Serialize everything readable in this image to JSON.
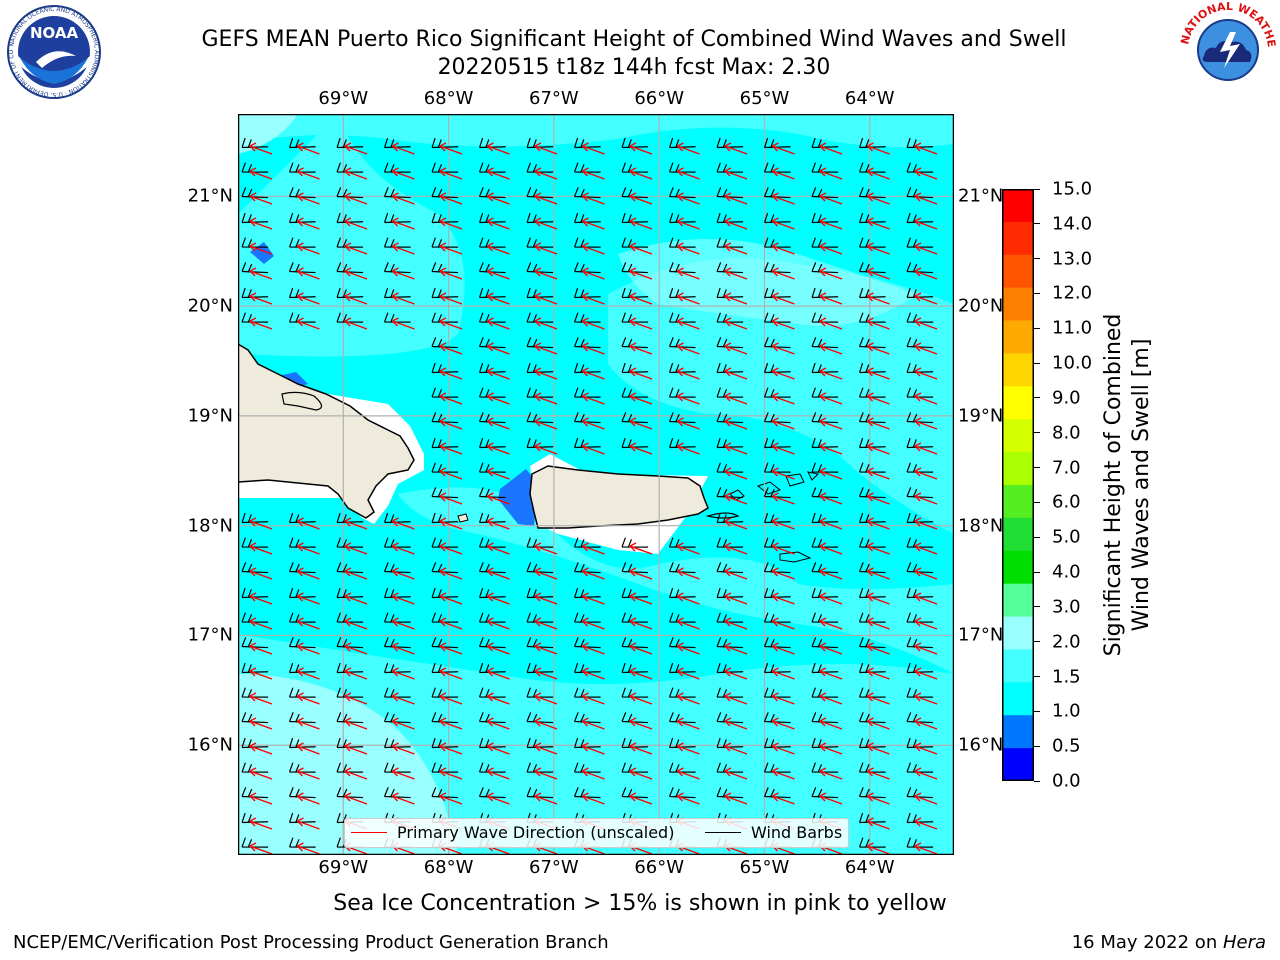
{
  "title": {
    "line1": "GEFS MEAN Puerto Rico Significant Height of Combined Wind Waves and Swell",
    "line2": "20220515 t18z 144h fcst   Max: 2.30"
  },
  "logos": {
    "left": "NOAA",
    "left_ring_text": "NATIONAL OCEANIC AND ATMOSPHERIC ADMINISTRATION · U.S. DEPARTMENT OF COMMERCE",
    "right_ring_text": "NATIONAL WEATHER SERVICE"
  },
  "map": {
    "lon_labels": [
      "69°W",
      "68°W",
      "67°W",
      "66°W",
      "65°W",
      "64°W"
    ],
    "lat_labels": [
      "21°N",
      "20°N",
      "19°N",
      "18°N",
      "17°N",
      "16°N"
    ],
    "lon_range": [
      -70.0,
      -63.2
    ],
    "lat_range": [
      15.0,
      21.75
    ],
    "colors": {
      "land": "#efebdc",
      "sea_base": "#00ffff",
      "wave_arrow": "#ff0000",
      "wind_barb": "#000000",
      "grid": "#b0b0b0"
    }
  },
  "legend": {
    "items": [
      {
        "label": "Primary Wave Direction (unscaled)",
        "color": "#ff0000"
      },
      {
        "label": "Wind Barbs",
        "color": "#000000"
      }
    ]
  },
  "colorbar": {
    "title_line1": "Significant Height of Combined",
    "title_line2": "Wind Waves and Swell [m]",
    "ticks": [
      "15.0",
      "14.0",
      "13.0",
      "12.0",
      "11.0",
      "10.0",
      "9.0",
      "8.0",
      "7.0",
      "6.0",
      "5.0",
      "4.0",
      "3.0",
      "2.0",
      "1.5",
      "1.0",
      "0.5",
      "0.0"
    ],
    "bins_top_to_bottom": [
      "#ff0000",
      "#ff2a00",
      "#ff5500",
      "#ff8000",
      "#ffaa00",
      "#ffd500",
      "#ffff00",
      "#d4ff00",
      "#aaff00",
      "#55ee22",
      "#22dd33",
      "#00dd00",
      "#55ff99",
      "#99ffff",
      "#44ffff",
      "#00ffff",
      "#0077ff",
      "#0000ff"
    ]
  },
  "notes": {
    "sea_ice": "Sea Ice Concentration > 15% is shown in pink to yellow"
  },
  "footer": {
    "left": "NCEP/EMC/Verification Post Processing Product Generation Branch",
    "right_prefix": "16 May 2022 on ",
    "right_host": "Hera"
  }
}
